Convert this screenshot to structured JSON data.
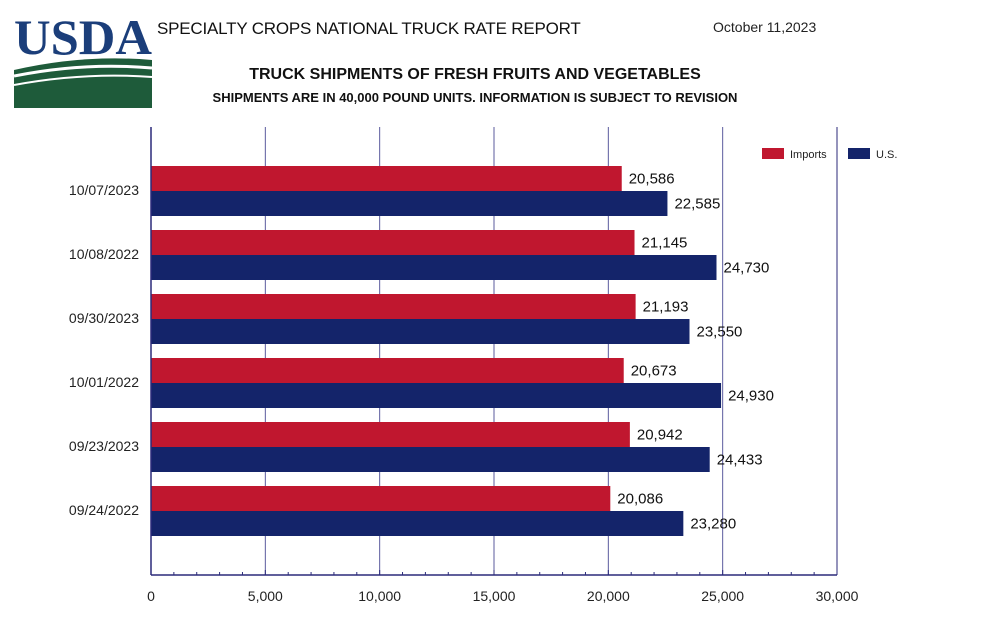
{
  "header": {
    "logo_text": "USDA",
    "report_title": "SPECIALTY CROPS NATIONAL TRUCK RATE REPORT",
    "report_date": "October 11,2023"
  },
  "colors": {
    "imports": "#c0172f",
    "us": "#14246a",
    "axis": "#2b2a7a",
    "grid": "#5b5b9e",
    "logo_blue": "#1b3e7a",
    "logo_green": "#1e5b3a"
  },
  "chart_data": {
    "type": "bar",
    "orientation": "horizontal",
    "title": "TRUCK SHIPMENTS OF FRESH FRUITS AND VEGETABLES",
    "subtitle": "SHIPMENTS ARE IN 40,000 POUND UNITS. INFORMATION IS SUBJECT TO REVISION",
    "categories": [
      "10/07/2023",
      "10/08/2022",
      "09/30/2023",
      "10/01/2022",
      "09/23/2023",
      "09/24/2022"
    ],
    "series": [
      {
        "name": "Imports",
        "values": [
          20586,
          21145,
          21193,
          20673,
          20942,
          20086
        ]
      },
      {
        "name": "U.S.",
        "values": [
          22585,
          24730,
          23550,
          24930,
          24433,
          23280
        ]
      }
    ],
    "data_labels": {
      "Imports": [
        "20,586",
        "21,145",
        "21,193",
        "20,673",
        "20,942",
        "20,086"
      ],
      "U.S.": [
        "22,585",
        "24,730",
        "23,550",
        "24,930",
        "24,433",
        "23,280"
      ]
    },
    "xlim": [
      0,
      30000
    ],
    "x_ticks": [
      0,
      5000,
      10000,
      15000,
      20000,
      25000,
      30000
    ],
    "x_tick_labels": [
      "0",
      "5,000",
      "10,000",
      "15,000",
      "20,000",
      "25,000",
      "30,000"
    ],
    "xlabel": "",
    "ylabel": "",
    "grid": true,
    "legend_position": "top-right"
  }
}
